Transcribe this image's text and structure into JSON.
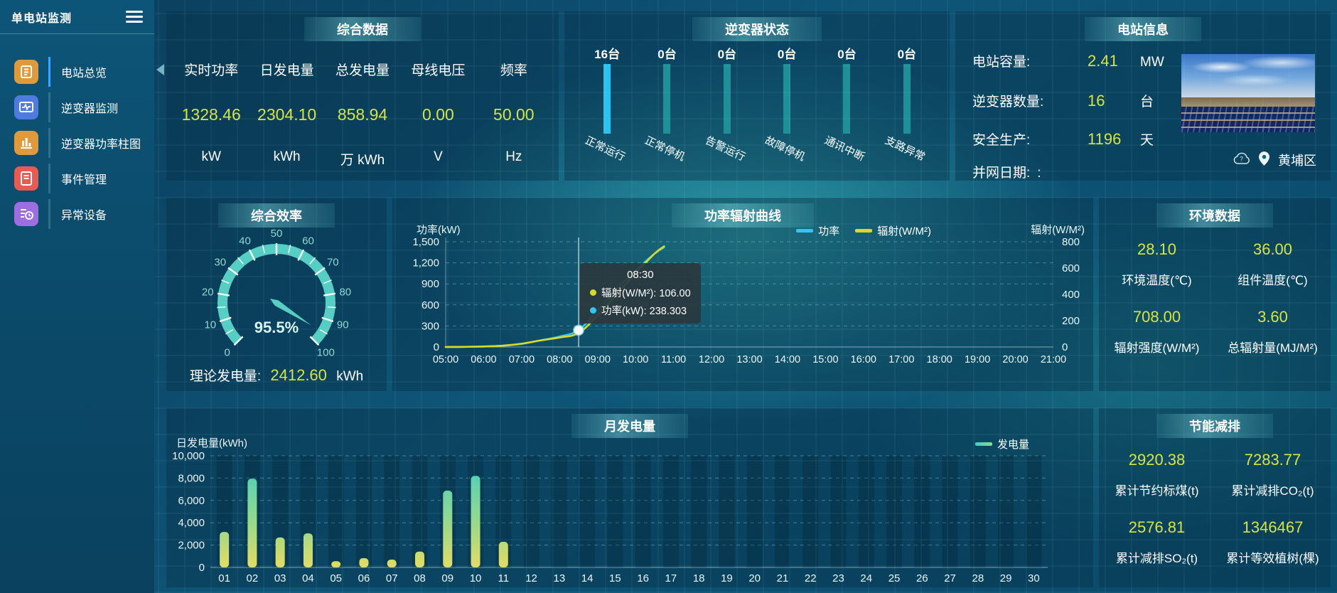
{
  "app": {
    "title": "单电站监测"
  },
  "colors": {
    "accent_yellow": "#d7e53c",
    "power_line": "#33c5f3",
    "radiation_line": "#d9d926",
    "gauge": "#57cec3",
    "inverter_bar": "#1f9097",
    "inverter_bar_active": "#2ac3f0"
  },
  "sidebar": {
    "items": [
      {
        "key": "station-overview",
        "label": "电站总览",
        "icon": "overview-news-icon",
        "icon_bg": "#e09a3c",
        "active": true
      },
      {
        "key": "inverter-monitor",
        "label": "逆变器监测",
        "icon": "inverter-monitor-icon",
        "icon_bg": "#4f7be0",
        "active": false
      },
      {
        "key": "inverter-power-bars",
        "label": "逆变器功率柱图",
        "icon": "inverter-power-bars-icon",
        "icon_bg": "#e09a3c",
        "active": false
      },
      {
        "key": "event-management",
        "label": "事件管理",
        "icon": "event-management-icon",
        "icon_bg": "#e85a52",
        "active": false
      },
      {
        "key": "abnormal-device",
        "label": "异常设备",
        "icon": "abnormal-device-icon",
        "icon_bg": "#9d6ee0",
        "active": false
      }
    ]
  },
  "panels": {
    "summary": {
      "title": "综合数据",
      "metrics": [
        {
          "label": "实时功率",
          "value": "1328.46",
          "unit": "kW"
        },
        {
          "label": "日发电量",
          "value": "2304.10",
          "unit": "kWh"
        },
        {
          "label": "总发电量",
          "value": "858.94",
          "unit": "万 kWh"
        },
        {
          "label": "母线电压",
          "value": "0.00",
          "unit": "V"
        },
        {
          "label": "频率",
          "value": "50.00",
          "unit": "Hz"
        }
      ]
    },
    "inverters": {
      "title": "逆变器状态",
      "items": [
        {
          "count": "16台",
          "label": "正常运行",
          "highlight": true
        },
        {
          "count": "0台",
          "label": "正常停机",
          "highlight": false
        },
        {
          "count": "0台",
          "label": "告警运行",
          "highlight": false
        },
        {
          "count": "0台",
          "label": "故障停机",
          "highlight": false
        },
        {
          "count": "0台",
          "label": "通讯中断",
          "highlight": false
        },
        {
          "count": "0台",
          "label": "支路异常",
          "highlight": false
        }
      ]
    },
    "station": {
      "title": "电站信息",
      "rows": [
        {
          "label": "电站容量:",
          "value": "2.41",
          "unit": "MW"
        },
        {
          "label": "逆变器数量:",
          "value": "16",
          "unit": "台"
        },
        {
          "label": "安全生产:",
          "value": "1196",
          "unit": "天"
        },
        {
          "label": "并网日期:",
          "value": ":",
          "unit": ""
        }
      ],
      "location": "黄埔区"
    },
    "efficiency": {
      "theory_label": "理论发电量:",
      "theory_value": "2412.60",
      "theory_unit": "kWh"
    },
    "environment": {
      "title": "环境数据",
      "cells": [
        {
          "value": "28.10",
          "label": "环境温度(℃)"
        },
        {
          "value": "36.00",
          "label": "组件温度(℃)"
        },
        {
          "value": "708.00",
          "label": "辐射强度(W/M²)"
        },
        {
          "value": "3.60",
          "label": "总辐射量(MJ/M²)"
        }
      ]
    },
    "saving": {
      "title": "节能减排",
      "cells": [
        {
          "value": "2920.38",
          "label": "累计节约标煤(t)"
        },
        {
          "value": "7283.77",
          "label": "累计减排CO₂(t)"
        },
        {
          "value": "2576.81",
          "label": "累计减排SO₂(t)"
        },
        {
          "value": "1346467",
          "label": "累计等效植树(棵)"
        }
      ]
    }
  },
  "chart_data": [
    {
      "type": "gauge",
      "title": "综合效率",
      "min": 0,
      "max": 100,
      "value": 95.5,
      "value_display": "95.5%",
      "tick_labels": [
        "0",
        "10",
        "20",
        "30",
        "40",
        "50",
        "60",
        "70",
        "80",
        "90",
        "100"
      ],
      "arc_color": "#57cec3",
      "label_color": "#8fd8d2"
    },
    {
      "type": "line",
      "title": "功率辐射曲线",
      "left_axis": {
        "name": "功率(kW)",
        "min": 0,
        "max": 1500,
        "tick_labels": [
          "0",
          "300",
          "600",
          "900",
          "1,200",
          "1,500"
        ]
      },
      "right_axis": {
        "name": "辐射(W/M²)",
        "min": 0,
        "max": 800,
        "tick_labels": [
          "0",
          "200",
          "400",
          "600",
          "800"
        ]
      },
      "x_labels": [
        "05:00",
        "06:00",
        "07:00",
        "08:00",
        "09:00",
        "10:00",
        "11:00",
        "12:00",
        "13:00",
        "14:00",
        "15:00",
        "16:00",
        "17:00",
        "18:00",
        "19:00",
        "20:00",
        "21:00"
      ],
      "x_range": [
        5,
        21
      ],
      "grid": true,
      "legend_position": "top-right",
      "series": [
        {
          "name": "功率",
          "color": "#33c5f3",
          "axis": "left",
          "points": [
            [
              5,
              0
            ],
            [
              5.5,
              2
            ],
            [
              6,
              6
            ],
            [
              6.5,
              18
            ],
            [
              7,
              45
            ],
            [
              7.5,
              95
            ],
            [
              8,
              150
            ],
            [
              8.5,
              238.3
            ],
            [
              9,
              520
            ],
            [
              9.5,
              820
            ],
            [
              10,
              1090
            ],
            [
              10.5,
              1330
            ],
            [
              10.75,
              1420
            ]
          ]
        },
        {
          "name": "辐射(W/M²)",
          "color": "#d9d926",
          "axis": "right",
          "points": [
            [
              5,
              0
            ],
            [
              5.5,
              1
            ],
            [
              6,
              4
            ],
            [
              6.5,
              10
            ],
            [
              7,
              25
            ],
            [
              7.5,
              50
            ],
            [
              8,
              72
            ],
            [
              8.5,
              106
            ],
            [
              9,
              240
            ],
            [
              9.5,
              400
            ],
            [
              10,
              560
            ],
            [
              10.5,
              710
            ],
            [
              10.75,
              765
            ]
          ]
        }
      ],
      "tooltip": {
        "x": 8.5,
        "title": "08:30",
        "items": [
          {
            "text": "辐射(W/M²): 106.00",
            "color": "#d9d926"
          },
          {
            "text": "功率(kW): 238.303",
            "color": "#33c5f3"
          }
        ],
        "marker": {
          "x": 8.5,
          "value": 238.3
        }
      }
    },
    {
      "type": "bar",
      "title": "月发电量",
      "ylabel": "日发电量(kWh)",
      "legend": "发电量",
      "categories": [
        "01",
        "02",
        "03",
        "04",
        "05",
        "06",
        "07",
        "08",
        "09",
        "10",
        "11",
        "12",
        "13",
        "14",
        "15",
        "16",
        "17",
        "18",
        "19",
        "20",
        "21",
        "22",
        "23",
        "24",
        "25",
        "26",
        "27",
        "28",
        "29",
        "30"
      ],
      "values": [
        3180,
        7950,
        2680,
        3050,
        560,
        830,
        700,
        1420,
        6880,
        8200,
        2290,
        0,
        0,
        0,
        0,
        0,
        0,
        0,
        0,
        0,
        0,
        0,
        0,
        0,
        0,
        0,
        0,
        0,
        0,
        0
      ],
      "ylim": [
        0,
        10000
      ],
      "y_tick_labels": [
        "0",
        "2,000",
        "4,000",
        "6,000",
        "8,000",
        "10,000"
      ],
      "bar_gradient": [
        "#e3dc62",
        "#8fd98f",
        "#3fcbc4"
      ],
      "grid": true,
      "legend_position": "top-right"
    }
  ]
}
